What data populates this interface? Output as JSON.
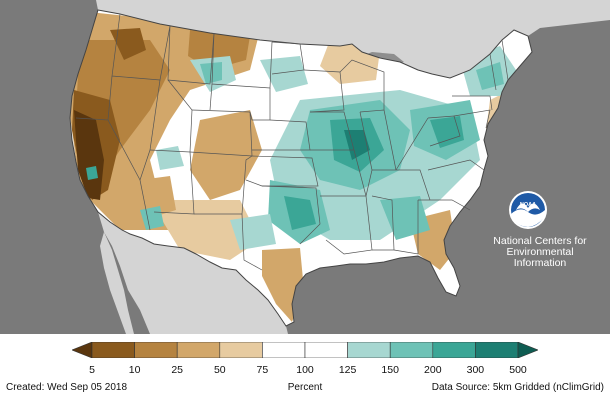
{
  "map": {
    "colors": {
      "background_gray": "#7a7a7a",
      "land_gray": "#d4d4d4",
      "lake_gray": "#8e8e8e",
      "conus_base": "#ffffff",
      "border": "#555555"
    }
  },
  "branding": {
    "logo_text": "NOAA",
    "name_line1": "National Centers for",
    "name_line2": "Environmental",
    "name_line3": "Information"
  },
  "legend": {
    "title": "Percent",
    "ticks": [
      "5",
      "10",
      "25",
      "50",
      "75",
      "100",
      "125",
      "150",
      "200",
      "300",
      "500"
    ],
    "colors": [
      "#5a360e",
      "#8a5a1e",
      "#b58340",
      "#d2a76a",
      "#e7cba0",
      "#ffffff",
      "#ffffff",
      "#a7d7d1",
      "#6ec2b6",
      "#3ba696",
      "#1d7f73",
      "#0e5c52"
    ]
  },
  "footer": {
    "created": "Created: Wed Sep 05 2018",
    "data_source": "Data Source: 5km Gridded (nClimGrid)"
  }
}
